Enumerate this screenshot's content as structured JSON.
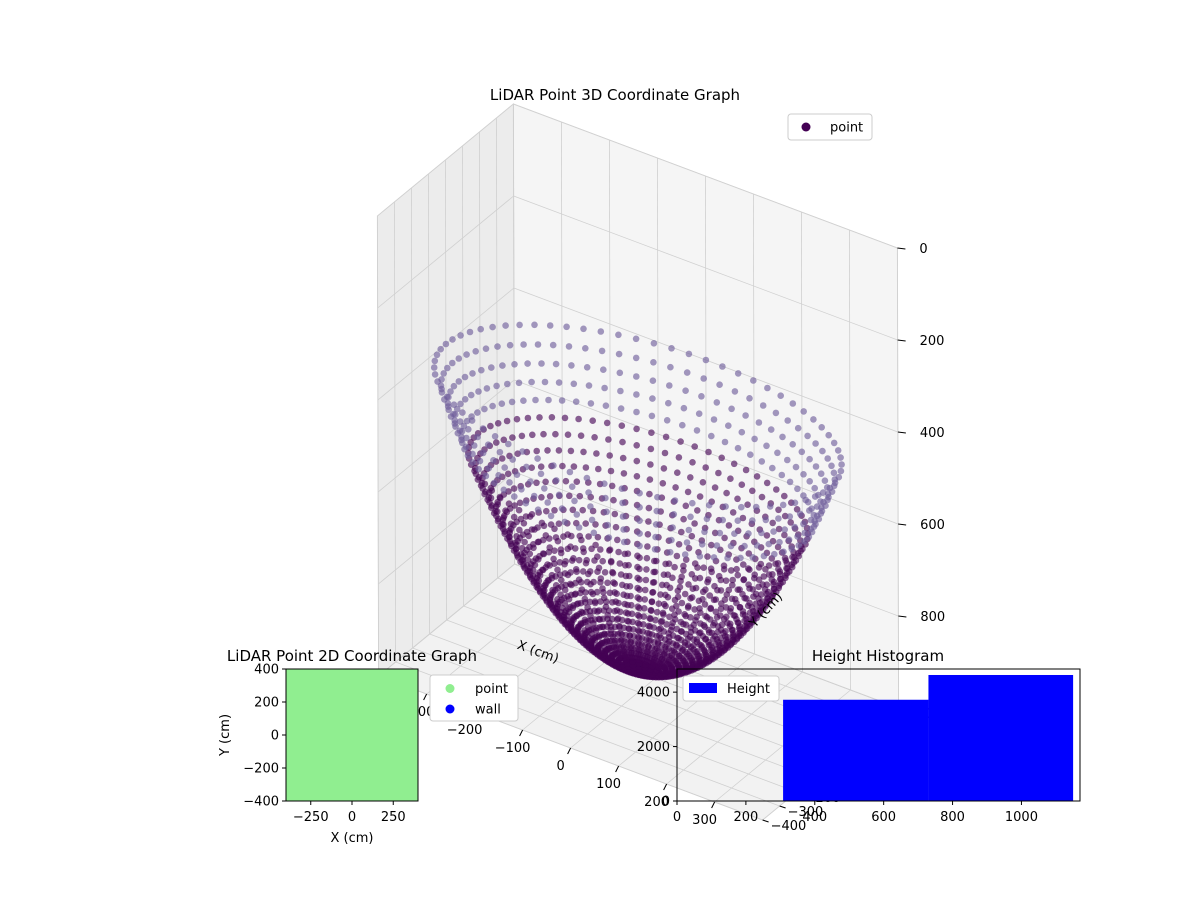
{
  "chart_data": [
    {
      "type": "scatter3d",
      "title": "LiDAR Point 3D Coordinate Graph",
      "xlabel": "X (cm)",
      "ylabel": "Y (cm)",
      "zlabel": "",
      "xlim": [
        -400,
        400
      ],
      "ylim": [
        -400,
        400
      ],
      "zlim": [
        -1000,
        0
      ],
      "xticks": [
        -400,
        -300,
        -200,
        -100,
        0,
        100,
        200,
        300
      ],
      "yticks": [
        -400,
        -300,
        -200,
        -100,
        0,
        100,
        200,
        300,
        400
      ],
      "zticks_shown": [
        0,
        -200,
        -400,
        -600,
        -800
      ],
      "zticklabels": [
        "0",
        "200",
        "400",
        "600",
        "800"
      ],
      "grid": true,
      "legend": {
        "position": "top-right",
        "entries": [
          {
            "label": "point",
            "color": "#440154"
          }
        ]
      },
      "series": [
        {
          "name": "point",
          "color_dark": "#440154",
          "color_light": "#6c5a99",
          "shape": "bowl",
          "bowl_radius": 400,
          "rim_z": -400,
          "bottom_z": -950,
          "rays": 72,
          "points_per_ray": 30
        }
      ]
    },
    {
      "type": "scatter",
      "title": "LiDAR Point 2D Coordinate Graph",
      "xlabel": "X (cm)",
      "ylabel": "Y (cm)",
      "xlim": [
        -400,
        400
      ],
      "ylim": [
        -400,
        400
      ],
      "xticks": [
        -250,
        0,
        250
      ],
      "yticks": [
        -400,
        -200,
        0,
        200,
        400
      ],
      "legend": {
        "position": "outside-right",
        "entries": [
          {
            "label": "point",
            "color": "#90ee90"
          },
          {
            "label": "wall",
            "color": "#0000ff"
          }
        ]
      },
      "fill_color": "#90ee90"
    },
    {
      "type": "histogram",
      "title": "Height Histogram",
      "xlim": [
        0,
        1170
      ],
      "ylim": [
        0,
        4850
      ],
      "xticks": [
        0,
        200,
        400,
        600,
        800,
        1000
      ],
      "yticks": [
        0,
        2000,
        4000
      ],
      "legend": {
        "position": "top-left",
        "entries": [
          {
            "label": "Height",
            "color": "#0000ff"
          }
        ]
      },
      "bar_color": "#0000ff",
      "bins": [
        {
          "x0": 308,
          "x1": 730,
          "count": 3720
        },
        {
          "x0": 730,
          "x1": 1150,
          "count": 4630
        }
      ]
    }
  ]
}
